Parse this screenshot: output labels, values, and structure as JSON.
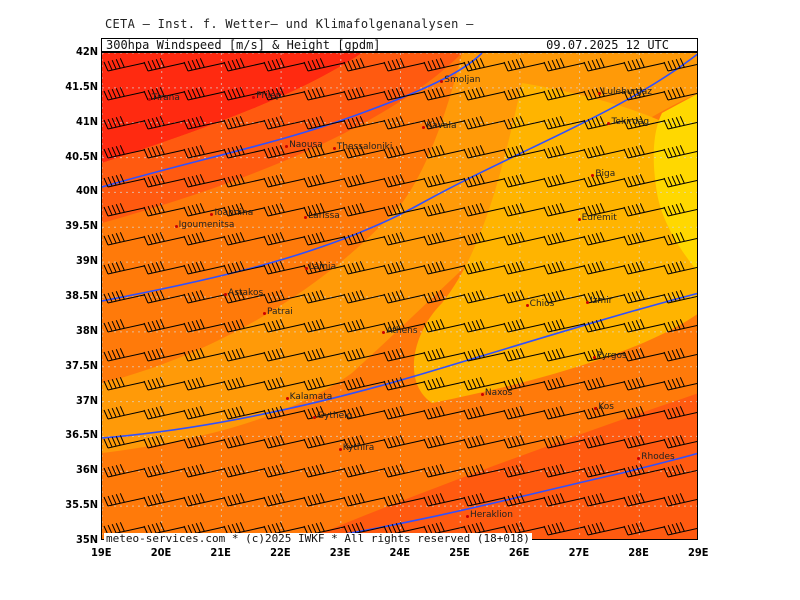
{
  "header": {
    "institute": "CETA — Inst. f. Wetter— und Klimafolgenanalysen —",
    "product": "300hpa Windspeed [m/s] & Height [gpdm]",
    "valid_time": "09.07.2025 12 UTC"
  },
  "footer": "meteo-services.com * (c)2025 IWKF * All rights reserved (18+018)",
  "axes": {
    "lat_labels": [
      "42N",
      "41.5N",
      "41N",
      "40.5N",
      "40N",
      "39.5N",
      "39N",
      "38.5N",
      "38N",
      "37.5N",
      "37N",
      "36.5N",
      "36N",
      "35.5N",
      "35N"
    ],
    "lon_labels": [
      "19E",
      "20E",
      "21E",
      "22E",
      "23E",
      "24E",
      "25E",
      "26E",
      "27E",
      "28E",
      "29E"
    ]
  },
  "map": {
    "lat_range": [
      35,
      42
    ],
    "lon_range": [
      19,
      29
    ],
    "colors": {
      "red": "#ff2a10",
      "dark_orange": "#ff5a10",
      "orange": "#ff7a0a",
      "light_orange": "#ff9a08",
      "amber": "#ffb400",
      "yellow": "#ffd800",
      "contour": "#3050ff",
      "grid": "#d8d8d8"
    },
    "cities": [
      {
        "name": "Tirana",
        "lon": 19.8,
        "lat": 41.33
      },
      {
        "name": "Prilep",
        "lon": 21.55,
        "lat": 41.35
      },
      {
        "name": "Naousa",
        "lon": 22.1,
        "lat": 40.65
      },
      {
        "name": "Thessaloniki",
        "lon": 22.9,
        "lat": 40.63
      },
      {
        "name": "Smoljan",
        "lon": 24.7,
        "lat": 41.58
      },
      {
        "name": "Kavala",
        "lon": 24.4,
        "lat": 40.93
      },
      {
        "name": "Luleburgaz",
        "lon": 27.35,
        "lat": 41.41
      },
      {
        "name": "Tekirdag",
        "lon": 27.5,
        "lat": 40.98
      },
      {
        "name": "Biga",
        "lon": 27.23,
        "lat": 40.23
      },
      {
        "name": "Edremit",
        "lon": 27.0,
        "lat": 39.6
      },
      {
        "name": "Ioannina",
        "lon": 20.85,
        "lat": 39.67
      },
      {
        "name": "Igoumenitsa",
        "lon": 20.25,
        "lat": 39.5
      },
      {
        "name": "Larissa",
        "lon": 22.42,
        "lat": 39.64
      },
      {
        "name": "Lamia",
        "lon": 22.43,
        "lat": 38.9
      },
      {
        "name": "Astakos",
        "lon": 21.08,
        "lat": 38.53
      },
      {
        "name": "Patrai",
        "lon": 21.73,
        "lat": 38.25
      },
      {
        "name": "Athens",
        "lon": 23.73,
        "lat": 37.98
      },
      {
        "name": "Chios",
        "lon": 26.13,
        "lat": 38.37
      },
      {
        "name": "Izmir",
        "lon": 27.14,
        "lat": 38.42
      },
      {
        "name": "Pyrgos",
        "lon": 27.25,
        "lat": 37.63
      },
      {
        "name": "Naxos",
        "lon": 25.38,
        "lat": 37.1
      },
      {
        "name": "Kos",
        "lon": 27.28,
        "lat": 36.89
      },
      {
        "name": "Kalamata",
        "lon": 22.11,
        "lat": 37.04
      },
      {
        "name": "Gytheio",
        "lon": 22.57,
        "lat": 36.76
      },
      {
        "name": "Kythira",
        "lon": 23.0,
        "lat": 36.3
      },
      {
        "name": "Rhodes",
        "lon": 28.0,
        "lat": 36.17
      },
      {
        "name": "Heraklion",
        "lon": 25.13,
        "lat": 35.34
      }
    ]
  }
}
